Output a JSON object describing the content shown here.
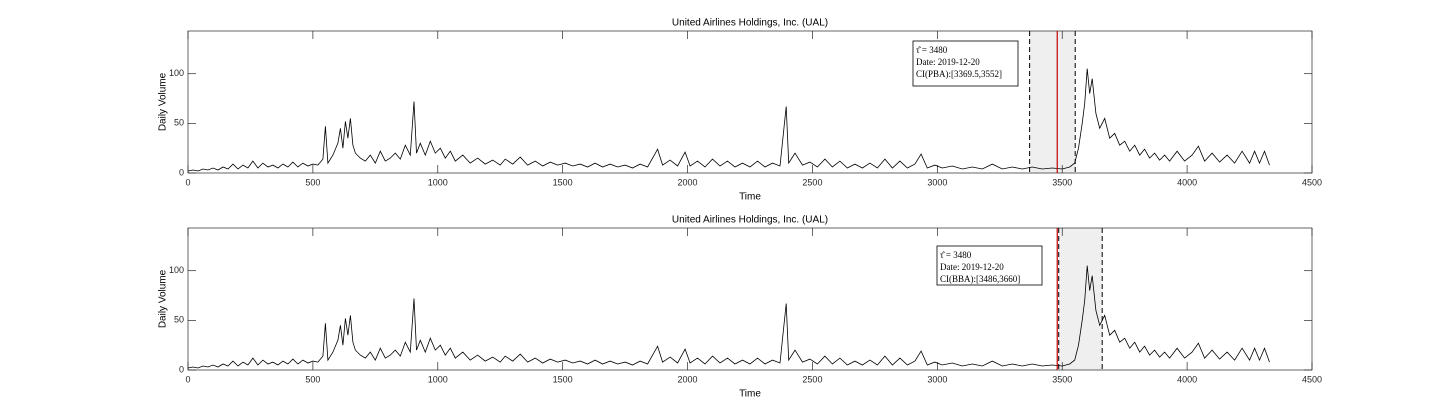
{
  "chart_data": [
    {
      "type": "line",
      "title": "United Airlines Holdings, Inc. (UAL)",
      "xlabel": "Time",
      "ylabel": "Daily Volume",
      "xlim": [
        0,
        4500
      ],
      "xticks": [
        0,
        500,
        1000,
        1500,
        2000,
        2500,
        3000,
        3500,
        4000,
        4500
      ],
      "ylim": [
        0,
        143
      ],
      "yticks": [
        0,
        50,
        100
      ],
      "series": [
        {
          "color": "#000000",
          "x": [
            0,
            20,
            40,
            60,
            80,
            100,
            120,
            140,
            160,
            180,
            200,
            220,
            240,
            260,
            280,
            300,
            320,
            340,
            360,
            380,
            400,
            420,
            440,
            460,
            480,
            500,
            520,
            540,
            550,
            560,
            580,
            600,
            610,
            620,
            630,
            640,
            650,
            660,
            670,
            690,
            710,
            730,
            750,
            770,
            790,
            810,
            830,
            850,
            870,
            890,
            905,
            915,
            930,
            950,
            970,
            990,
            1010,
            1030,
            1050,
            1070,
            1100,
            1130,
            1160,
            1190,
            1220,
            1250,
            1270,
            1300,
            1330,
            1360,
            1390,
            1420,
            1450,
            1480,
            1510,
            1540,
            1570,
            1600,
            1630,
            1660,
            1690,
            1720,
            1750,
            1780,
            1810,
            1840,
            1880,
            1900,
            1930,
            1960,
            1990,
            2010,
            2040,
            2070,
            2100,
            2130,
            2160,
            2190,
            2220,
            2250,
            2280,
            2310,
            2340,
            2370,
            2395,
            2405,
            2430,
            2460,
            2490,
            2520,
            2550,
            2580,
            2610,
            2640,
            2670,
            2700,
            2730,
            2760,
            2790,
            2820,
            2850,
            2880,
            2910,
            2935,
            2960,
            2990,
            3020,
            3060,
            3100,
            3140,
            3180,
            3220,
            3260,
            3300,
            3340,
            3380,
            3420,
            3460,
            3500,
            3530,
            3550,
            3565,
            3580,
            3590,
            3600,
            3610,
            3620,
            3635,
            3650,
            3670,
            3690,
            3710,
            3730,
            3750,
            3770,
            3790,
            3810,
            3830,
            3850,
            3870,
            3890,
            3910,
            3930,
            3960,
            3990,
            4020,
            4045,
            4070,
            4100,
            4130,
            4160,
            4190,
            4220,
            4250,
            4270,
            4290,
            4310,
            4330
          ],
          "values": [
            2,
            3,
            2,
            4,
            3,
            5,
            3,
            6,
            4,
            9,
            4,
            8,
            5,
            12,
            5,
            10,
            6,
            8,
            5,
            9,
            6,
            11,
            6,
            10,
            7,
            9,
            8,
            14,
            47,
            10,
            18,
            30,
            45,
            25,
            52,
            35,
            55,
            28,
            20,
            15,
            12,
            18,
            10,
            22,
            12,
            15,
            20,
            14,
            28,
            18,
            72,
            20,
            30,
            18,
            32,
            20,
            25,
            15,
            22,
            12,
            18,
            10,
            15,
            9,
            13,
            8,
            14,
            9,
            16,
            8,
            12,
            7,
            11,
            8,
            10,
            7,
            9,
            6,
            10,
            6,
            9,
            6,
            8,
            5,
            9,
            6,
            24,
            8,
            13,
            7,
            21,
            7,
            12,
            6,
            14,
            7,
            12,
            6,
            10,
            6,
            12,
            6,
            10,
            7,
            67,
            10,
            20,
            8,
            11,
            6,
            14,
            6,
            12,
            5,
            9,
            5,
            10,
            5,
            14,
            5,
            12,
            5,
            9,
            19,
            5,
            8,
            5,
            7,
            4,
            6,
            4,
            9,
            4,
            6,
            4,
            6,
            4,
            5,
            4,
            6,
            10,
            25,
            50,
            70,
            105,
            80,
            95,
            60,
            45,
            55,
            35,
            40,
            28,
            32,
            22,
            28,
            18,
            24,
            15,
            20,
            13,
            18,
            12,
            22,
            12,
            18,
            27,
            12,
            20,
            11,
            18,
            10,
            22,
            10,
            22,
            10,
            22,
            8
          ]
        }
      ],
      "tau_hat": 3480,
      "ci": [
        3369.5,
        3552
      ],
      "annotation": [
        "τ̂ = 3480",
        "Date: 2019-12-20",
        "CI(PBA):[3369.5,3552]"
      ]
    },
    {
      "type": "line",
      "title": "United Airlines Holdings, Inc. (UAL)",
      "xlabel": "Time",
      "ylabel": "Daily Volume",
      "xlim": [
        0,
        4500
      ],
      "xticks": [
        0,
        500,
        1000,
        1500,
        2000,
        2500,
        3000,
        3500,
        4000,
        4500
      ],
      "ylim": [
        0,
        143
      ],
      "yticks": [
        0,
        50,
        100
      ],
      "series": [
        {
          "color": "#000000",
          "x": [
            0,
            20,
            40,
            60,
            80,
            100,
            120,
            140,
            160,
            180,
            200,
            220,
            240,
            260,
            280,
            300,
            320,
            340,
            360,
            380,
            400,
            420,
            440,
            460,
            480,
            500,
            520,
            540,
            550,
            560,
            580,
            600,
            610,
            620,
            630,
            640,
            650,
            660,
            670,
            690,
            710,
            730,
            750,
            770,
            790,
            810,
            830,
            850,
            870,
            890,
            905,
            915,
            930,
            950,
            970,
            990,
            1010,
            1030,
            1050,
            1070,
            1100,
            1130,
            1160,
            1190,
            1220,
            1250,
            1270,
            1300,
            1330,
            1360,
            1390,
            1420,
            1450,
            1480,
            1510,
            1540,
            1570,
            1600,
            1630,
            1660,
            1690,
            1720,
            1750,
            1780,
            1810,
            1840,
            1880,
            1900,
            1930,
            1960,
            1990,
            2010,
            2040,
            2070,
            2100,
            2130,
            2160,
            2190,
            2220,
            2250,
            2280,
            2310,
            2340,
            2370,
            2395,
            2405,
            2430,
            2460,
            2490,
            2520,
            2550,
            2580,
            2610,
            2640,
            2670,
            2700,
            2730,
            2760,
            2790,
            2820,
            2850,
            2880,
            2910,
            2935,
            2960,
            2990,
            3020,
            3060,
            3100,
            3140,
            3180,
            3220,
            3260,
            3300,
            3340,
            3380,
            3420,
            3460,
            3500,
            3530,
            3550,
            3565,
            3580,
            3590,
            3600,
            3610,
            3620,
            3635,
            3650,
            3670,
            3690,
            3710,
            3730,
            3750,
            3770,
            3790,
            3810,
            3830,
            3850,
            3870,
            3890,
            3910,
            3930,
            3960,
            3990,
            4020,
            4045,
            4070,
            4100,
            4130,
            4160,
            4190,
            4220,
            4250,
            4270,
            4290,
            4310,
            4330
          ],
          "values": [
            2,
            3,
            2,
            4,
            3,
            5,
            3,
            6,
            4,
            9,
            4,
            8,
            5,
            12,
            5,
            10,
            6,
            8,
            5,
            9,
            6,
            11,
            6,
            10,
            7,
            9,
            8,
            14,
            47,
            10,
            18,
            30,
            45,
            25,
            52,
            35,
            55,
            28,
            20,
            15,
            12,
            18,
            10,
            22,
            12,
            15,
            20,
            14,
            28,
            18,
            72,
            20,
            30,
            18,
            32,
            20,
            25,
            15,
            22,
            12,
            18,
            10,
            15,
            9,
            13,
            8,
            14,
            9,
            16,
            8,
            12,
            7,
            11,
            8,
            10,
            7,
            9,
            6,
            10,
            6,
            9,
            6,
            8,
            5,
            9,
            6,
            24,
            8,
            13,
            7,
            21,
            7,
            12,
            6,
            14,
            7,
            12,
            6,
            10,
            6,
            12,
            6,
            10,
            7,
            67,
            10,
            20,
            8,
            11,
            6,
            14,
            6,
            12,
            5,
            9,
            5,
            10,
            5,
            14,
            5,
            12,
            5,
            9,
            19,
            5,
            8,
            5,
            7,
            4,
            6,
            4,
            9,
            4,
            6,
            4,
            6,
            4,
            5,
            4,
            6,
            10,
            25,
            50,
            70,
            105,
            80,
            95,
            60,
            45,
            55,
            35,
            40,
            28,
            32,
            22,
            28,
            18,
            24,
            15,
            20,
            13,
            18,
            12,
            22,
            12,
            18,
            27,
            12,
            20,
            11,
            18,
            10,
            22,
            10,
            22,
            10,
            22,
            8
          ]
        }
      ],
      "tau_hat": 3480,
      "ci": [
        3486,
        3660
      ],
      "annotation": [
        "τ̂ = 3480",
        "Date: 2019-12-20",
        "CI(BBA):[3486,3660]"
      ]
    }
  ]
}
